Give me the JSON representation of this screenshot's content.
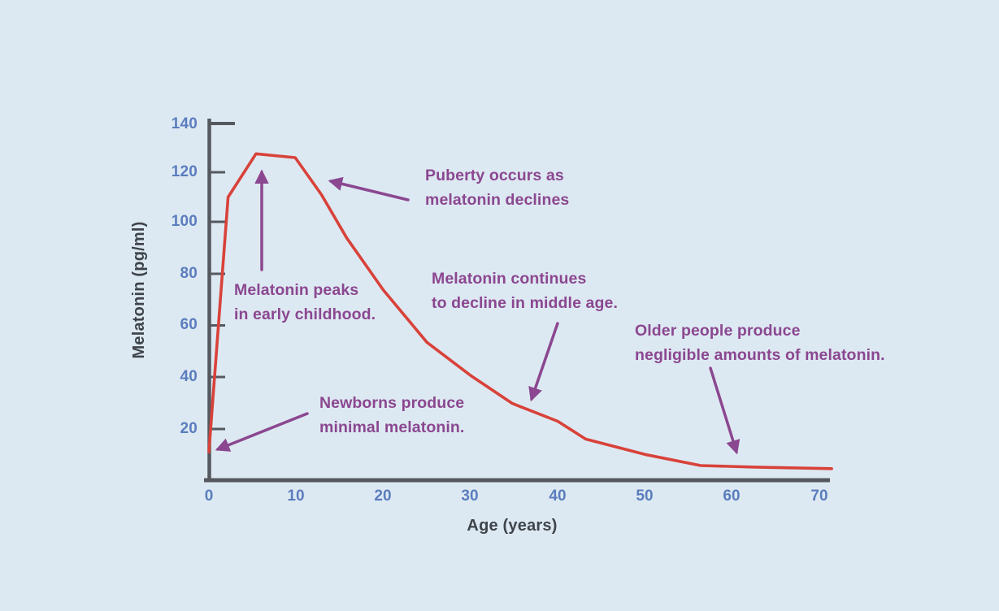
{
  "colors": {
    "background": "#dde9f2",
    "axis": "#55595f",
    "tick_label": "#5b7dbe",
    "axis_title": "#3f444a",
    "curve": "#d8423a",
    "annotation": "#8b4790"
  },
  "axes": {
    "y_title": "Melatonin (pg/ml)",
    "x_title": "Age (years)",
    "y_ticks": [
      "140",
      "120",
      "100",
      "80",
      "60",
      "40",
      "20"
    ],
    "x_ticks": [
      "0",
      "10",
      "20",
      "30",
      "40",
      "50",
      "60",
      "70"
    ]
  },
  "annotations": [
    {
      "id": "peak",
      "lines": [
        "Melatonin peaks",
        "in early childhood."
      ]
    },
    {
      "id": "puberty",
      "lines": [
        "Puberty occurs as",
        "melatonin declines"
      ]
    },
    {
      "id": "middle-age",
      "lines": [
        "Melatonin continues",
        "to decline in middle age."
      ]
    },
    {
      "id": "older",
      "lines": [
        "Older people produce",
        "negligible amounts of melatonin."
      ]
    },
    {
      "id": "newborns",
      "lines": [
        "Newborns produce",
        "minimal melatonin."
      ]
    }
  ],
  "chart_data": {
    "type": "line",
    "title": "",
    "xlabel": "Age (years)",
    "ylabel": "Melatonin (pg/ml)",
    "xlim": [
      0,
      72
    ],
    "ylim": [
      0,
      140
    ],
    "x_ticks": [
      0,
      10,
      20,
      30,
      40,
      50,
      60,
      70
    ],
    "y_ticks": [
      20,
      40,
      60,
      80,
      100,
      120,
      140
    ],
    "grid": false,
    "legend": "none",
    "series": [
      {
        "name": "Melatonin level",
        "color": "#d8423a",
        "points": [
          [
            0,
            11
          ],
          [
            2.2,
            111
          ],
          [
            5.4,
            128
          ],
          [
            9.9,
            126.5
          ],
          [
            12.9,
            112
          ],
          [
            15.8,
            95
          ],
          [
            20,
            74.5
          ],
          [
            25,
            54
          ],
          [
            30,
            41
          ],
          [
            34.8,
            30
          ],
          [
            40,
            23
          ],
          [
            43.2,
            16
          ],
          [
            50,
            10
          ],
          [
            56.4,
            5.6
          ],
          [
            62.7,
            5
          ],
          [
            71.4,
            4.4
          ]
        ]
      }
    ],
    "annotations": [
      "Newborns produce minimal melatonin.",
      "Melatonin peaks in early childhood.",
      "Puberty occurs as melatonin declines",
      "Melatonin continues to decline in middle age.",
      "Older people produce negligible amounts of melatonin."
    ]
  }
}
